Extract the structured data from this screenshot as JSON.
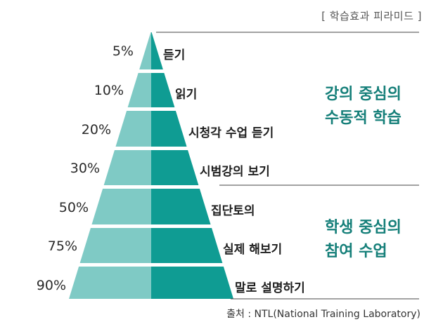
{
  "header": "[ 학습효과 피라미드 ]",
  "levels": [
    {
      "percent": "5%",
      "label": "듣기"
    },
    {
      "percent": "10%",
      "label": "읽기"
    },
    {
      "percent": "20%",
      "label": "시청각 수업 듣기"
    },
    {
      "percent": "30%",
      "label": "시범강의 보기"
    },
    {
      "percent": "50%",
      "label": "집단토의"
    },
    {
      "percent": "75%",
      "label": "실제 해보기"
    },
    {
      "percent": "90%",
      "label": "말로 설명하기"
    }
  ],
  "groups": {
    "passive": {
      "line1": "강의 중심의",
      "line2": "수동적 학습"
    },
    "active": {
      "line1": "학생 중심의",
      "line2": "참여 수업"
    }
  },
  "source": "출처 : NTL(National Training Laboratory)",
  "colors": {
    "light": "#7fcac5",
    "dark": "#0f9c93",
    "group_text": "#157f79"
  }
}
